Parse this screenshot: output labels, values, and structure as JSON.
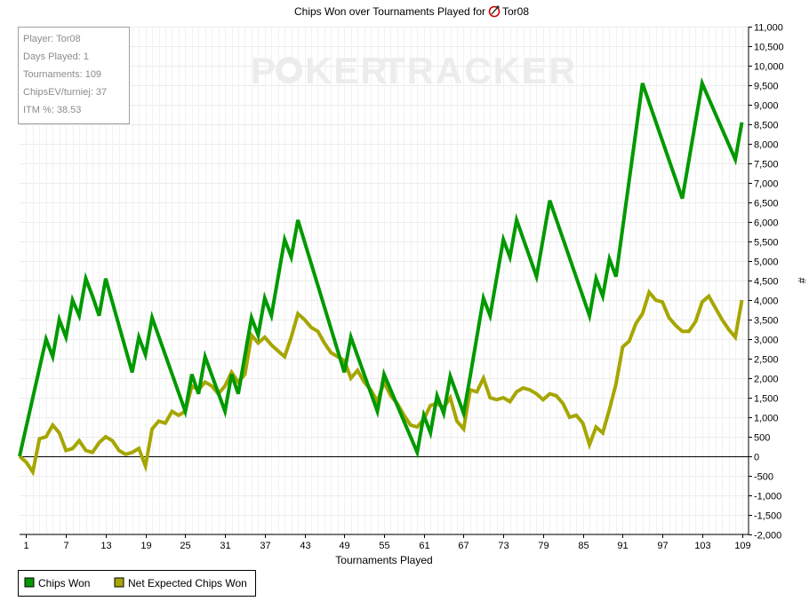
{
  "page": {
    "title_prefix": "Chips Won over Tournaments Played for",
    "player_name": "Tor08",
    "watermark_part1": "P",
    "watermark_part2": "KER",
    "watermark_part3": "TRACKER"
  },
  "stats": [
    "Player: Tor08",
    "Days Played: 1",
    "Tournaments: 109",
    "ChipsEV/turniej: 37",
    "ITM %: 38.53"
  ],
  "legend": [
    {
      "label": "Chips Won",
      "color": "#009900"
    },
    {
      "label": "Net Expected Chips Won",
      "color": "#a6a600"
    }
  ],
  "chart_data": {
    "type": "line",
    "title": "Chips Won over Tournaments Played for Tor08",
    "xlabel": "Tournaments Played",
    "ylabel": "#",
    "xlim": [
      1,
      110
    ],
    "ylim": [
      -2000,
      11000
    ],
    "x_ticks": [
      1,
      7,
      13,
      19,
      25,
      31,
      37,
      43,
      49,
      55,
      61,
      67,
      73,
      79,
      85,
      91,
      97,
      103,
      109
    ],
    "y_ticks": [
      -2000,
      -1500,
      -1000,
      -500,
      0,
      500,
      1000,
      1500,
      2000,
      2500,
      3000,
      3500,
      4000,
      4500,
      5000,
      5500,
      6000,
      6500,
      7000,
      7500,
      8000,
      8500,
      9000,
      9500,
      10000,
      10500,
      11000
    ],
    "y_tick_labels": [
      "-2,000",
      "-1,500",
      "-1,000",
      "-500",
      "0",
      "500",
      "1,000",
      "1,500",
      "2,000",
      "2,500",
      "3,000",
      "3,500",
      "4,000",
      "4,500",
      "5,000",
      "5,500",
      "6,000",
      "6,500",
      "7,000",
      "7,500",
      "8,000",
      "8,500",
      "9,000",
      "9,500",
      "10,000",
      "10,500",
      "11,000"
    ],
    "grid": true,
    "legend_position": "bottom-left",
    "series": [
      {
        "name": "Chips Won",
        "color": "#009900",
        "points": [
          [
            0,
            0
          ],
          [
            4,
            3000
          ],
          [
            5,
            2550
          ],
          [
            6,
            3500
          ],
          [
            7,
            3050
          ],
          [
            8,
            4000
          ],
          [
            9,
            3600
          ],
          [
            10,
            4550
          ],
          [
            11,
            4100
          ],
          [
            12,
            3600
          ],
          [
            13,
            4550
          ],
          [
            17,
            2150
          ],
          [
            18,
            3050
          ],
          [
            19,
            2600
          ],
          [
            20,
            3550
          ],
          [
            25,
            1150
          ],
          [
            26,
            2100
          ],
          [
            27,
            1600
          ],
          [
            28,
            2550
          ],
          [
            31,
            1150
          ],
          [
            32,
            2100
          ],
          [
            33,
            1600
          ],
          [
            35,
            3550
          ],
          [
            36,
            3100
          ],
          [
            37,
            4050
          ],
          [
            38,
            3600
          ],
          [
            40,
            5550
          ],
          [
            41,
            5100
          ],
          [
            42,
            6050
          ],
          [
            49,
            2150
          ],
          [
            50,
            3050
          ],
          [
            54,
            1150
          ],
          [
            55,
            2100
          ],
          [
            60,
            100
          ],
          [
            61,
            1050
          ],
          [
            62,
            600
          ],
          [
            63,
            1550
          ],
          [
            64,
            1100
          ],
          [
            65,
            2050
          ],
          [
            67,
            1100
          ],
          [
            68,
            2050
          ],
          [
            70,
            4050
          ],
          [
            71,
            3600
          ],
          [
            73,
            5550
          ],
          [
            74,
            5100
          ],
          [
            75,
            6050
          ],
          [
            78,
            4600
          ],
          [
            80,
            6550
          ],
          [
            86,
            3600
          ],
          [
            87,
            4550
          ],
          [
            88,
            4100
          ],
          [
            89,
            5050
          ],
          [
            90,
            4600
          ],
          [
            94,
            9550
          ],
          [
            100,
            6600
          ],
          [
            103,
            9550
          ],
          [
            108,
            7600
          ],
          [
            109,
            8550
          ]
        ]
      },
      {
        "name": "Net Expected Chips Won",
        "color": "#a6a600",
        "points": [
          [
            0,
            0
          ],
          [
            1,
            -150
          ],
          [
            2,
            -400
          ],
          [
            3,
            450
          ],
          [
            4,
            500
          ],
          [
            5,
            800
          ],
          [
            6,
            600
          ],
          [
            7,
            150
          ],
          [
            8,
            200
          ],
          [
            9,
            400
          ],
          [
            10,
            150
          ],
          [
            11,
            100
          ],
          [
            12,
            350
          ],
          [
            13,
            500
          ],
          [
            14,
            400
          ],
          [
            15,
            150
          ],
          [
            16,
            50
          ],
          [
            17,
            100
          ],
          [
            18,
            200
          ],
          [
            19,
            -250
          ],
          [
            20,
            700
          ],
          [
            21,
            900
          ],
          [
            22,
            850
          ],
          [
            23,
            1150
          ],
          [
            24,
            1050
          ],
          [
            25,
            1150
          ],
          [
            26,
            1800
          ],
          [
            27,
            1700
          ],
          [
            28,
            1900
          ],
          [
            29,
            1800
          ],
          [
            30,
            1600
          ],
          [
            31,
            1800
          ],
          [
            32,
            2150
          ],
          [
            33,
            1900
          ],
          [
            34,
            2100
          ],
          [
            35,
            3100
          ],
          [
            36,
            2900
          ],
          [
            37,
            3050
          ],
          [
            38,
            2850
          ],
          [
            39,
            2700
          ],
          [
            40,
            2550
          ],
          [
            41,
            3050
          ],
          [
            42,
            3650
          ],
          [
            43,
            3500
          ],
          [
            44,
            3300
          ],
          [
            45,
            3200
          ],
          [
            46,
            2900
          ],
          [
            47,
            2650
          ],
          [
            48,
            2550
          ],
          [
            49,
            2450
          ],
          [
            50,
            2000
          ],
          [
            51,
            2200
          ],
          [
            52,
            1900
          ],
          [
            53,
            1700
          ],
          [
            54,
            1400
          ],
          [
            55,
            1900
          ],
          [
            56,
            1550
          ],
          [
            57,
            1350
          ],
          [
            58,
            1050
          ],
          [
            59,
            800
          ],
          [
            60,
            750
          ],
          [
            61,
            950
          ],
          [
            62,
            1300
          ],
          [
            63,
            1350
          ],
          [
            64,
            1250
          ],
          [
            65,
            1500
          ],
          [
            66,
            900
          ],
          [
            67,
            700
          ],
          [
            68,
            1700
          ],
          [
            69,
            1650
          ],
          [
            70,
            2000
          ],
          [
            71,
            1500
          ],
          [
            72,
            1450
          ],
          [
            73,
            1500
          ],
          [
            74,
            1400
          ],
          [
            75,
            1650
          ],
          [
            76,
            1750
          ],
          [
            77,
            1700
          ],
          [
            78,
            1600
          ],
          [
            79,
            1450
          ],
          [
            80,
            1600
          ],
          [
            81,
            1550
          ],
          [
            82,
            1350
          ],
          [
            83,
            1000
          ],
          [
            84,
            1050
          ],
          [
            85,
            850
          ],
          [
            86,
            300
          ],
          [
            87,
            750
          ],
          [
            88,
            600
          ],
          [
            89,
            1200
          ],
          [
            90,
            1850
          ],
          [
            91,
            2800
          ],
          [
            92,
            2950
          ],
          [
            93,
            3400
          ],
          [
            94,
            3650
          ],
          [
            95,
            4200
          ],
          [
            96,
            4000
          ],
          [
            97,
            3950
          ],
          [
            98,
            3550
          ],
          [
            99,
            3350
          ],
          [
            100,
            3200
          ],
          [
            101,
            3200
          ],
          [
            102,
            3450
          ],
          [
            103,
            3950
          ],
          [
            104,
            4100
          ],
          [
            105,
            3800
          ],
          [
            106,
            3500
          ],
          [
            107,
            3250
          ],
          [
            108,
            3050
          ],
          [
            109,
            4000
          ]
        ]
      }
    ]
  }
}
